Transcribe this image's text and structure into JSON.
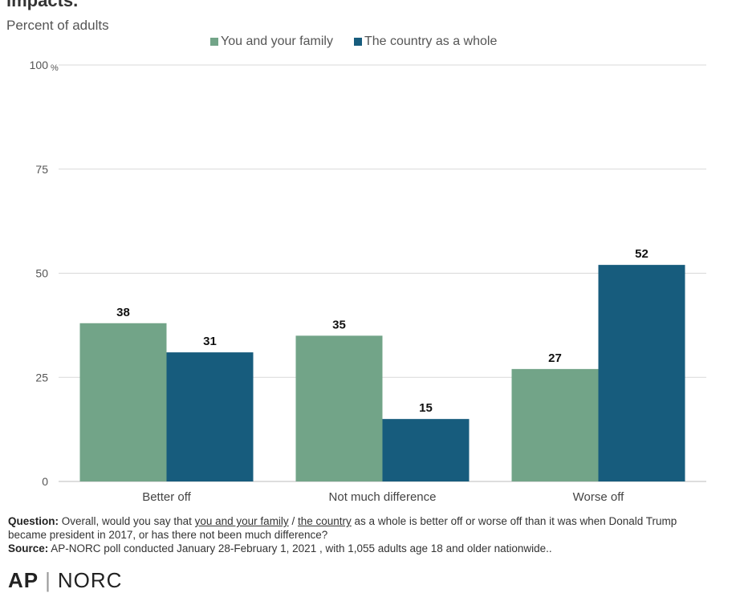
{
  "header": {
    "title": "impacts.",
    "subtitle": "Percent of adults"
  },
  "chart_data": {
    "type": "bar",
    "categories": [
      "Better off",
      "Not much difference",
      "Worse off"
    ],
    "series": [
      {
        "name": "You and your family",
        "values": [
          38,
          35,
          27
        ],
        "color": "#72a488"
      },
      {
        "name": "The country as a whole",
        "values": [
          31,
          15,
          52
        ],
        "color": "#175c7d"
      }
    ],
    "ylim": [
      0,
      100
    ],
    "yticks": [
      0,
      25,
      50,
      75,
      100
    ],
    "ytick_labels": [
      "0",
      "25",
      "50",
      "75",
      "100"
    ],
    "y_unit": "%",
    "grid": true,
    "legend_position": "top"
  },
  "footer": {
    "question_label": "Question:",
    "question_pre": "Overall, would you say that",
    "question_link1": "you and your family",
    "question_sep": "/",
    "question_link2": "the country",
    "question_post": "as a whole is better off or worse off than it was when Donald Trump became president in 2017, or has there not been much difference?",
    "source_label": "Source:",
    "source_text": "AP-NORC poll conducted January 28-February 1, 2021 , with 1,055 adults age 18 and older nationwide..",
    "logo_ap": "AP",
    "logo_norc": "NORC"
  }
}
